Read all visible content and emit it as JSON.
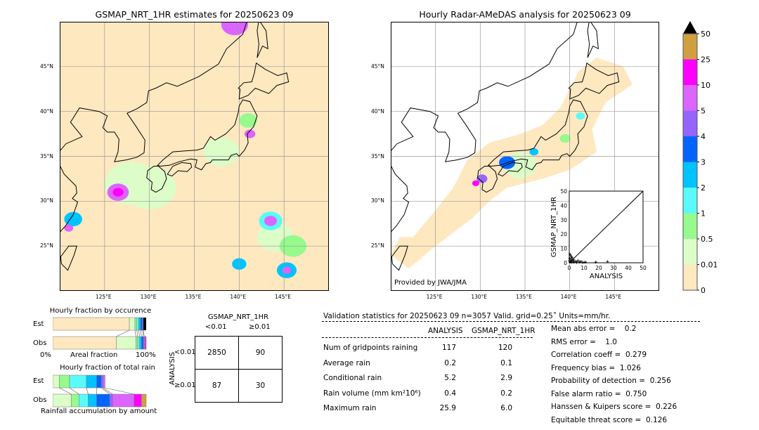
{
  "left_map": {
    "title": "GSMAP_NRT_1HR estimates for 20250623 09"
  },
  "right_map": {
    "title": "Hourly Radar-AMeDAS analysis for 20250623 09",
    "credit": "Provided by JWA/JMA"
  },
  "lon_ticks": [
    "125°E",
    "130°E",
    "135°E",
    "140°E",
    "145°E"
  ],
  "lat_ticks": [
    "45°N",
    "40°N",
    "35°N",
    "30°N",
    "25°N"
  ],
  "colorbar": {
    "labels": [
      "0",
      "0.01",
      "0.5",
      "1",
      "2",
      "3",
      "4",
      "5",
      "10",
      "25",
      "50"
    ],
    "colors": [
      "#fee8c0",
      "#dcfcc8",
      "#96fa8c",
      "#5afafa",
      "#00c3ff",
      "#0064ff",
      "#9664ff",
      "#dc64ff",
      "#ff00ff",
      "#d0a040"
    ],
    "extend_color": "#000000"
  },
  "scatter": {
    "xlabel": "ANALYSIS",
    "ylabel": "GSMAP_NRT_1HR",
    "ticks": [
      "0",
      "10",
      "20",
      "30",
      "40",
      "50"
    ],
    "lim": [
      0,
      50
    ],
    "points": [
      [
        0.5,
        0.5
      ],
      [
        1,
        1
      ],
      [
        1.5,
        0.3
      ],
      [
        2,
        2
      ],
      [
        0.3,
        3
      ],
      [
        1,
        5
      ],
      [
        2.5,
        1
      ],
      [
        3,
        0.5
      ],
      [
        4,
        1
      ],
      [
        5,
        0.8
      ],
      [
        6,
        1.5
      ],
      [
        7,
        0.5
      ],
      [
        8,
        1
      ],
      [
        10,
        0.3
      ],
      [
        11,
        0.5
      ],
      [
        18,
        0.5
      ],
      [
        25.9,
        0.8
      ],
      [
        0.5,
        6
      ],
      [
        2,
        3.5
      ],
      [
        1,
        2.5
      ],
      [
        3,
        2
      ],
      [
        0.2,
        1.5
      ],
      [
        1.5,
        4
      ],
      [
        5,
        0.2
      ],
      [
        9,
        0.2
      ]
    ]
  },
  "occurrence": {
    "title": "Hourly fraction by occurence",
    "xlabel": "Areal fraction",
    "left": "0%",
    "right": "100%",
    "rows": [
      {
        "label": "Est",
        "segments": [
          0.82,
          0.06,
          0.02,
          0.02,
          0.02,
          0.02,
          0.01
        ]
      },
      {
        "label": "Obs",
        "segments": [
          0.68,
          0.21,
          0.02,
          0.02,
          0.02,
          0.02,
          0.01,
          0.01,
          0.01
        ]
      }
    ]
  },
  "total_rain": {
    "title": "Hourly fraction of total rain",
    "xlabel": "Rainfall accumulation by amount",
    "rows": [
      {
        "label": "Est",
        "segments": [
          0.07,
          0.11,
          0.18,
          0.11,
          0.05,
          0.02,
          0.02
        ]
      },
      {
        "label": "Obs",
        "segments": [
          0.2,
          0.08,
          0.1,
          0.09,
          0.14,
          0.03,
          0.23,
          0.08,
          0.05
        ]
      }
    ]
  },
  "contingency": {
    "title": "GSMAP_NRT_1HR",
    "col_labels": [
      "<0.01",
      "≥0.01"
    ],
    "row_title": "ANALYSIS",
    "row_labels": [
      "<0.01",
      "≥0.01"
    ],
    "cells": [
      [
        "2850",
        "90"
      ],
      [
        "87",
        "30"
      ]
    ]
  },
  "validation": {
    "header": "Validation statistics for 20250623 09  n=3057 Valid. grid=0.25˚ Units=mm/hr.",
    "col_headers": [
      "ANALYSIS",
      "GSMAP_NRT_1HR"
    ],
    "rows": [
      {
        "label": "Num of gridpoints raining",
        "a": "117",
        "g": "120"
      },
      {
        "label": "Average rain",
        "a": "0.2",
        "g": "0.1"
      },
      {
        "label": "Conditional rain",
        "a": "5.2",
        "g": "2.9"
      },
      {
        "label": "Rain volume (mm km²10⁶)",
        "a": "0.4",
        "g": "0.2"
      },
      {
        "label": "Maximum rain",
        "a": "25.9",
        "g": "6.0"
      }
    ],
    "scores": [
      "Mean abs error =    0.2",
      "RMS error =    1.0",
      "Correlation coeff =  0.279",
      "Frequency bias =  1.026",
      "Probability of detection =  0.256",
      "False alarm ratio =  0.750",
      "Hanssen & Kuipers score =  0.226",
      "Equitable threat score =  0.126"
    ]
  }
}
